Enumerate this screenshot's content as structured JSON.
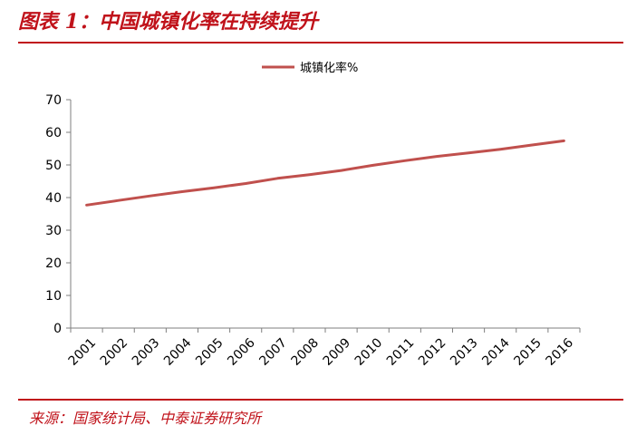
{
  "header": {
    "figure_title": "图表 1：中国城镇化率在持续提升"
  },
  "footer": {
    "source": "来源：国家统计局、中泰证券研究所"
  },
  "colors": {
    "accent": "#c0121a",
    "series": "#c0504d"
  },
  "chart_data": {
    "type": "line",
    "title": "",
    "xlabel": "",
    "ylabel": "",
    "x": [
      "2001",
      "2002",
      "2003",
      "2004",
      "2005",
      "2006",
      "2007",
      "2008",
      "2009",
      "2010",
      "2011",
      "2012",
      "2013",
      "2014",
      "2015",
      "2016"
    ],
    "series": [
      {
        "name": "城镇化率%",
        "values": [
          37.7,
          39.1,
          40.5,
          41.8,
          43.0,
          44.3,
          45.9,
          47.0,
          48.3,
          49.9,
          51.3,
          52.6,
          53.7,
          54.8,
          56.1,
          57.4
        ]
      }
    ],
    "ylim": [
      0,
      70
    ],
    "yticks": [
      0,
      10,
      20,
      30,
      40,
      50,
      60,
      70
    ],
    "grid": false,
    "legend": "top-center"
  }
}
